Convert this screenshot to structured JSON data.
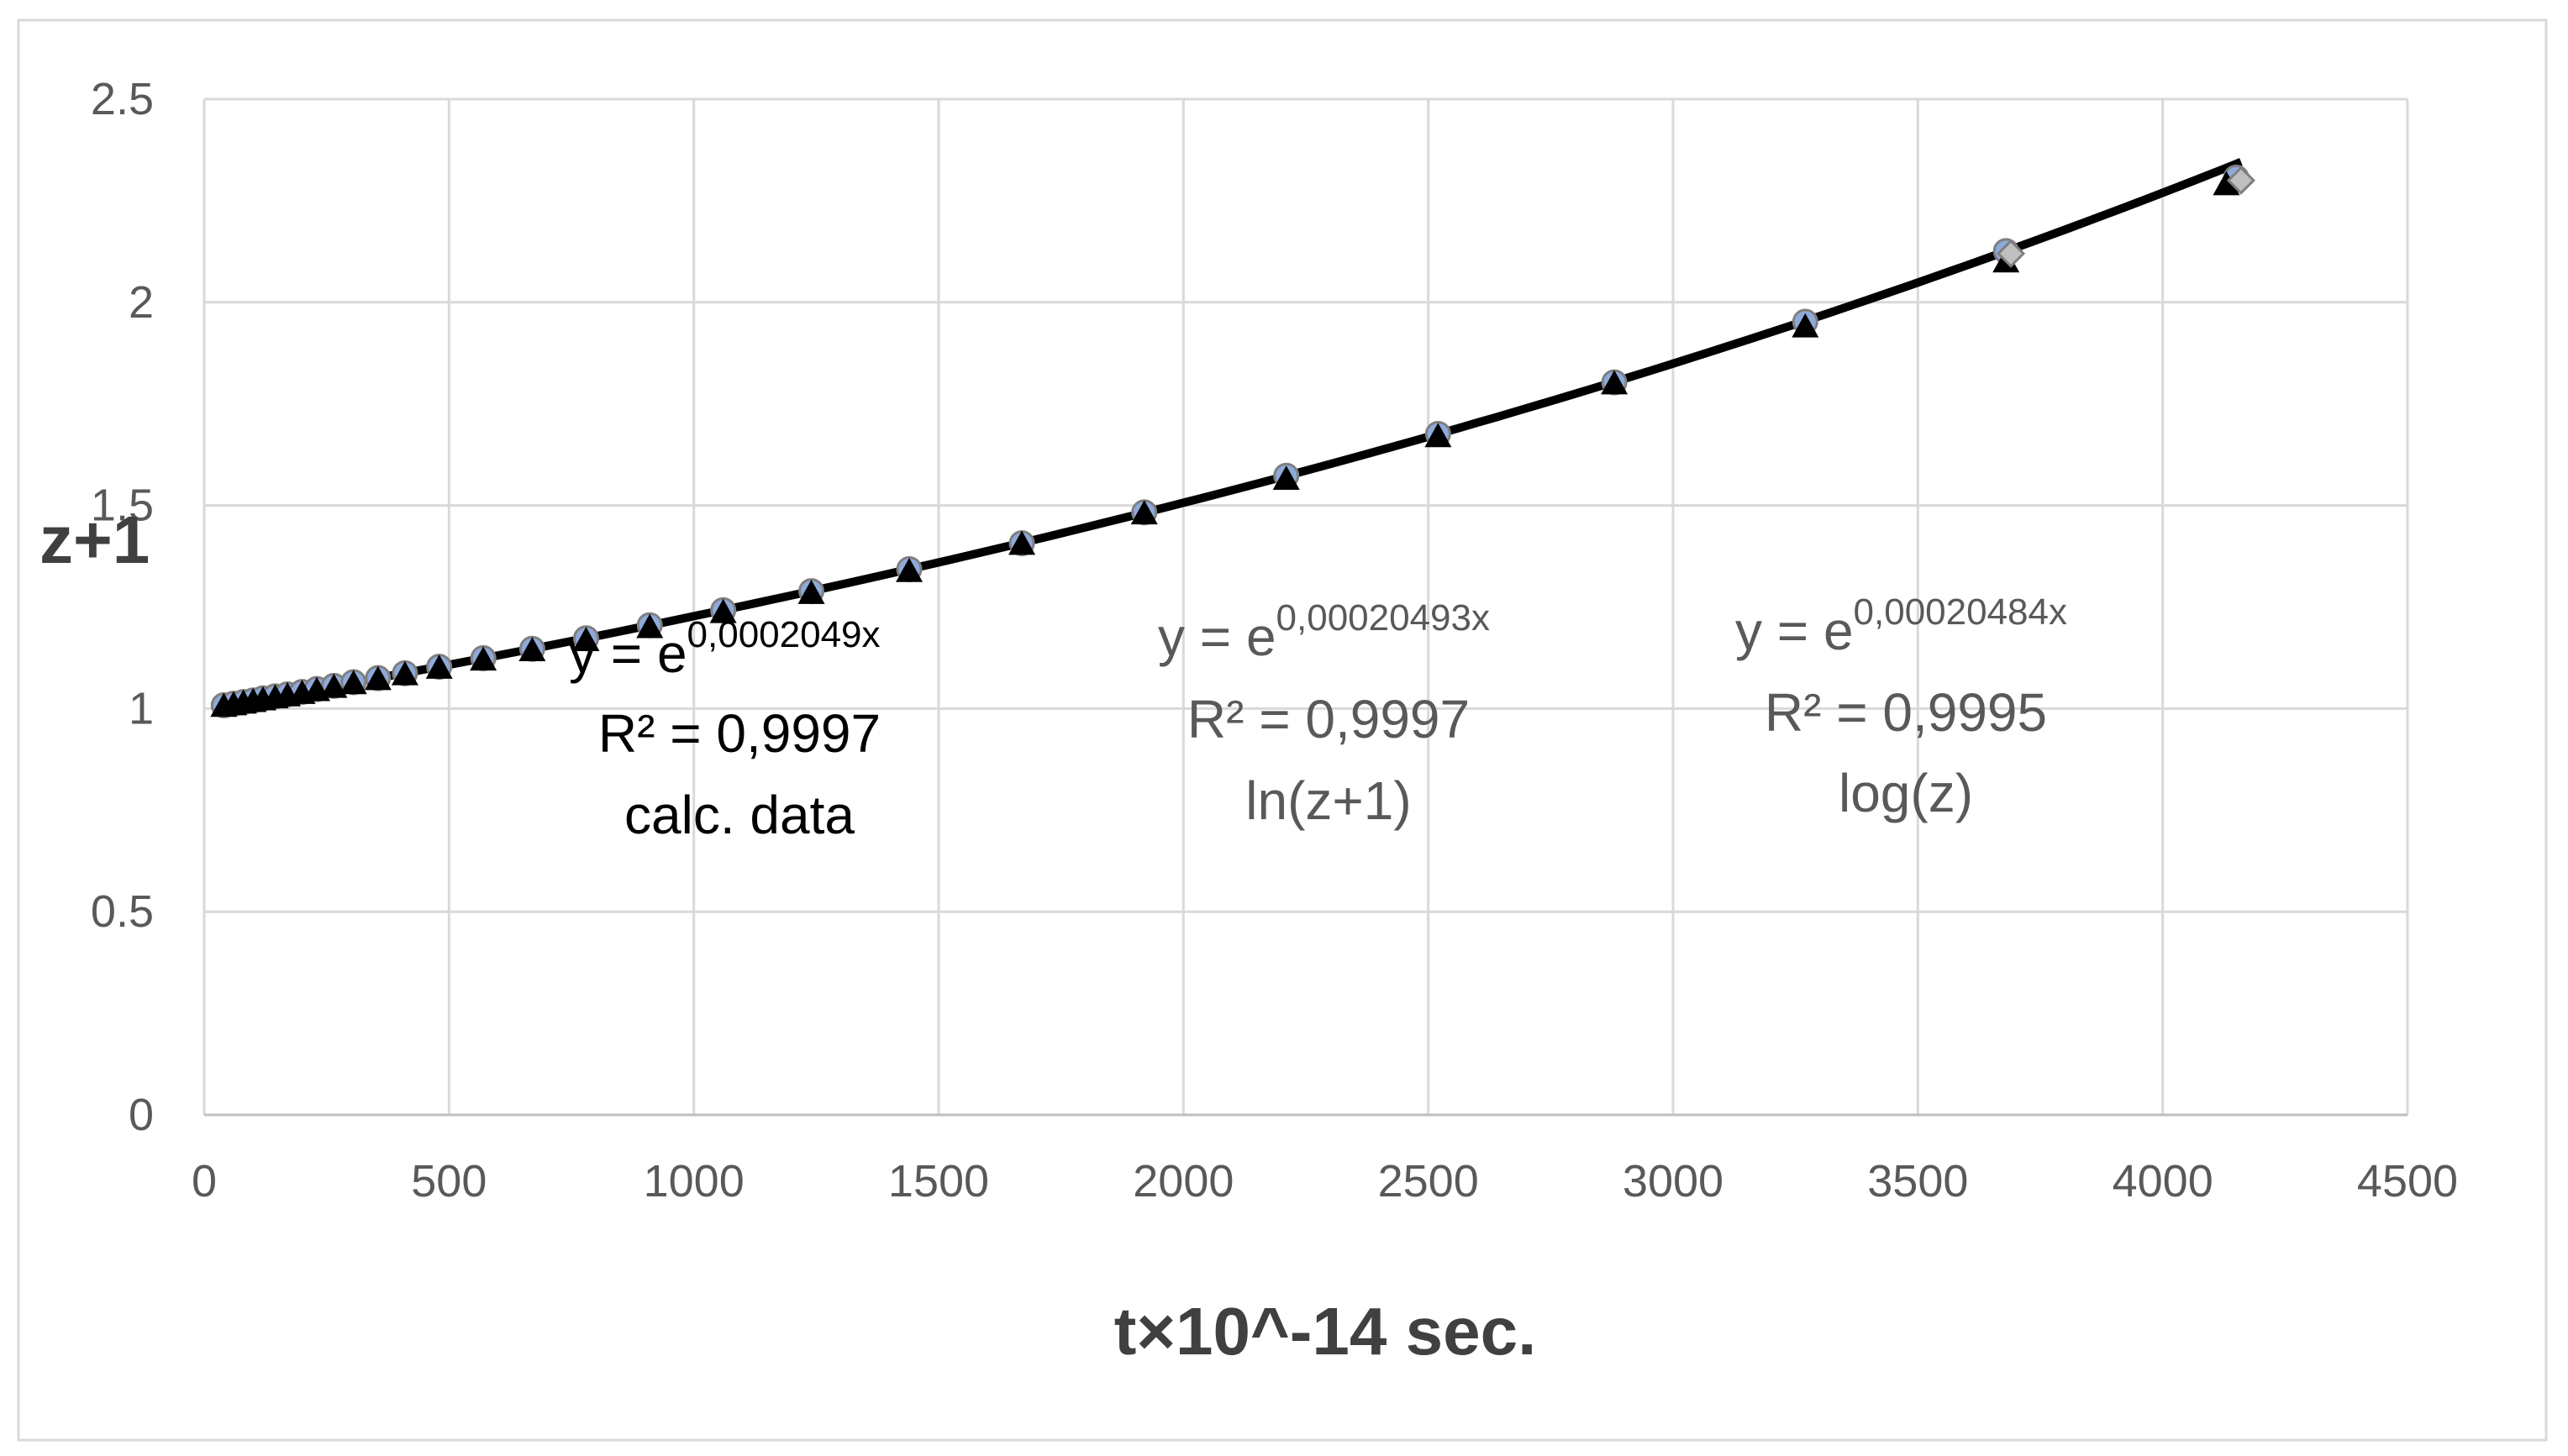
{
  "chart_data": {
    "type": "scatter",
    "xlabel": "t×10^-14 sec.",
    "ylabel": "z+1",
    "xlim": [
      0,
      4500
    ],
    "ylim": [
      0,
      2.5
    ],
    "x_ticks": [
      "0",
      "500",
      "1000",
      "1500",
      "2000",
      "2500",
      "3000",
      "3500",
      "4000",
      "4500"
    ],
    "y_ticks": [
      "0",
      "0.5",
      "1",
      "1.5",
      "2",
      "2.5"
    ],
    "grid": true,
    "legend": "none",
    "series": [
      {
        "marker": "circle",
        "color": "#8eaadb",
        "x": [
          40,
          60,
          80,
          100,
          120,
          145,
          170,
          200,
          230,
          265,
          305,
          355,
          410,
          480,
          570,
          670,
          780,
          910,
          1060,
          1240,
          1440,
          1670,
          1920,
          2210,
          2520,
          2880,
          3270,
          3680,
          4150
        ],
        "y": [
          1.008,
          1.012,
          1.016,
          1.02,
          1.025,
          1.03,
          1.035,
          1.041,
          1.048,
          1.056,
          1.065,
          1.075,
          1.087,
          1.103,
          1.124,
          1.147,
          1.173,
          1.205,
          1.242,
          1.289,
          1.343,
          1.407,
          1.483,
          1.573,
          1.676,
          1.803,
          1.952,
          2.126,
          2.307
        ]
      },
      {
        "marker": "triangle",
        "color": "#000000",
        "x": [
          40,
          60,
          80,
          100,
          120,
          145,
          170,
          200,
          230,
          265,
          305,
          355,
          410,
          480,
          570,
          670,
          780,
          910,
          1060,
          1240,
          1440,
          1670,
          1920,
          2210,
          2520,
          2880,
          3270,
          3680,
          4130
        ],
        "y": [
          1.006,
          1.01,
          1.014,
          1.018,
          1.022,
          1.027,
          1.032,
          1.038,
          1.045,
          1.053,
          1.062,
          1.072,
          1.084,
          1.1,
          1.12,
          1.143,
          1.168,
          1.2,
          1.237,
          1.284,
          1.338,
          1.405,
          1.48,
          1.565,
          1.67,
          1.8,
          1.94,
          2.1,
          2.29
        ]
      },
      {
        "marker": "diamond",
        "color": "#bfbfbf",
        "x": [
          3690,
          4160
        ],
        "y": [
          2.12,
          2.3
        ]
      }
    ],
    "trendlines": [
      {
        "style": "solid",
        "coef": 0.0002049
      },
      {
        "style": "dash",
        "coef": 0.00020493
      },
      {
        "style": "dashdot",
        "coef": 0.00020484
      }
    ],
    "annotations": [
      {
        "base": "y = e",
        "exponent": "0,0002049x",
        "r2": "R² = 0,9997",
        "label": "calc. data"
      },
      {
        "base": "y = e",
        "exponent": "0,00020493x",
        "r2": "R² = 0,9997",
        "label": "ln(z+1)"
      },
      {
        "base": "y = e",
        "exponent": "0,00020484x",
        "r2": "R² = 0,9995",
        "label": "log(z)"
      }
    ]
  }
}
